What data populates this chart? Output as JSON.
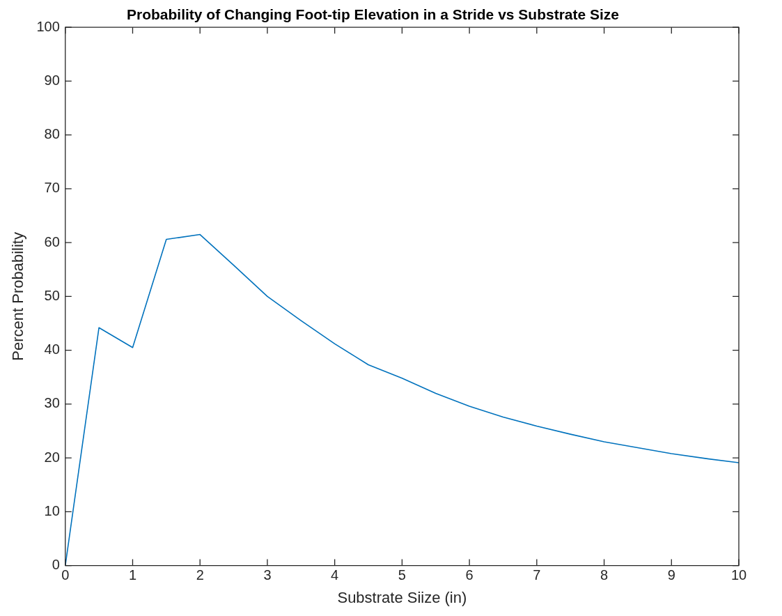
{
  "chart_data": {
    "type": "line",
    "title": "Probability of Changing Foot-tip Elevation in a Stride vs Substrate Size",
    "xlabel": "Substrate Siize (in)",
    "ylabel": "Percent Probability",
    "x": [
      0,
      0.5,
      1,
      1.5,
      2,
      2.5,
      3,
      3.5,
      4,
      4.5,
      5,
      5.5,
      6,
      6.5,
      7,
      7.5,
      8,
      8.5,
      9,
      9.5,
      10
    ],
    "series": [
      {
        "color": "#0072bd",
        "values": [
          0,
          44.2,
          40.5,
          60.6,
          61.5,
          55.8,
          50,
          45.5,
          41.2,
          37.3,
          34.8,
          32.0,
          29.6,
          27.6,
          25.9,
          24.4,
          23.0,
          21.9,
          20.8,
          19.9,
          19.1
        ]
      }
    ],
    "xlim": [
      0,
      10
    ],
    "xticks": [
      0,
      1,
      2,
      3,
      4,
      5,
      6,
      7,
      8,
      9,
      10
    ],
    "ylim": [
      0,
      100
    ],
    "yticks": [
      0,
      10,
      20,
      30,
      40,
      50,
      60,
      70,
      80,
      90,
      100
    ],
    "grid": false,
    "legend": false,
    "marker": "none",
    "line_style": "solid"
  }
}
